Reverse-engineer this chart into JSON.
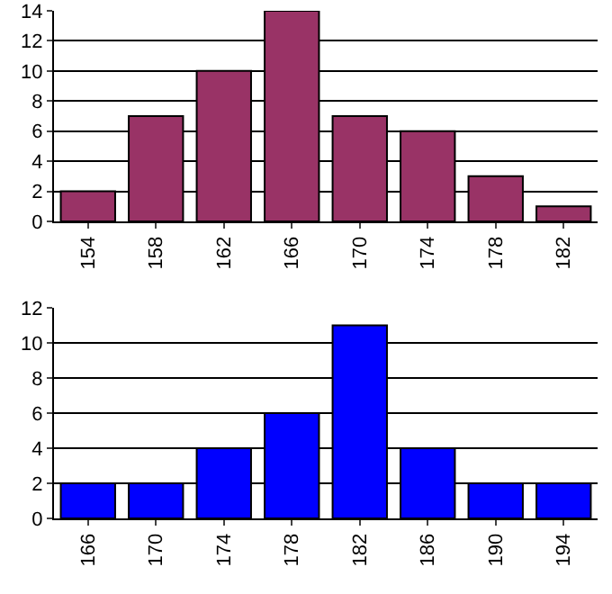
{
  "chart_data": [
    {
      "type": "bar",
      "categories": [
        "154",
        "158",
        "162",
        "166",
        "170",
        "174",
        "178",
        "182"
      ],
      "values": [
        2,
        7,
        10,
        14,
        7,
        6,
        3,
        1
      ],
      "color": "#993366",
      "ylim": [
        0,
        14
      ],
      "yticks": [
        0,
        2,
        4,
        6,
        8,
        10,
        12,
        14
      ],
      "grid": "y"
    },
    {
      "type": "bar",
      "categories": [
        "166",
        "170",
        "174",
        "178",
        "182",
        "186",
        "190",
        "194"
      ],
      "values": [
        2,
        2,
        4,
        6,
        11,
        4,
        2,
        2
      ],
      "color": "#0000ff",
      "ylim": [
        0,
        12
      ],
      "yticks": [
        0,
        2,
        4,
        6,
        8,
        10,
        12
      ],
      "grid": "y"
    }
  ]
}
